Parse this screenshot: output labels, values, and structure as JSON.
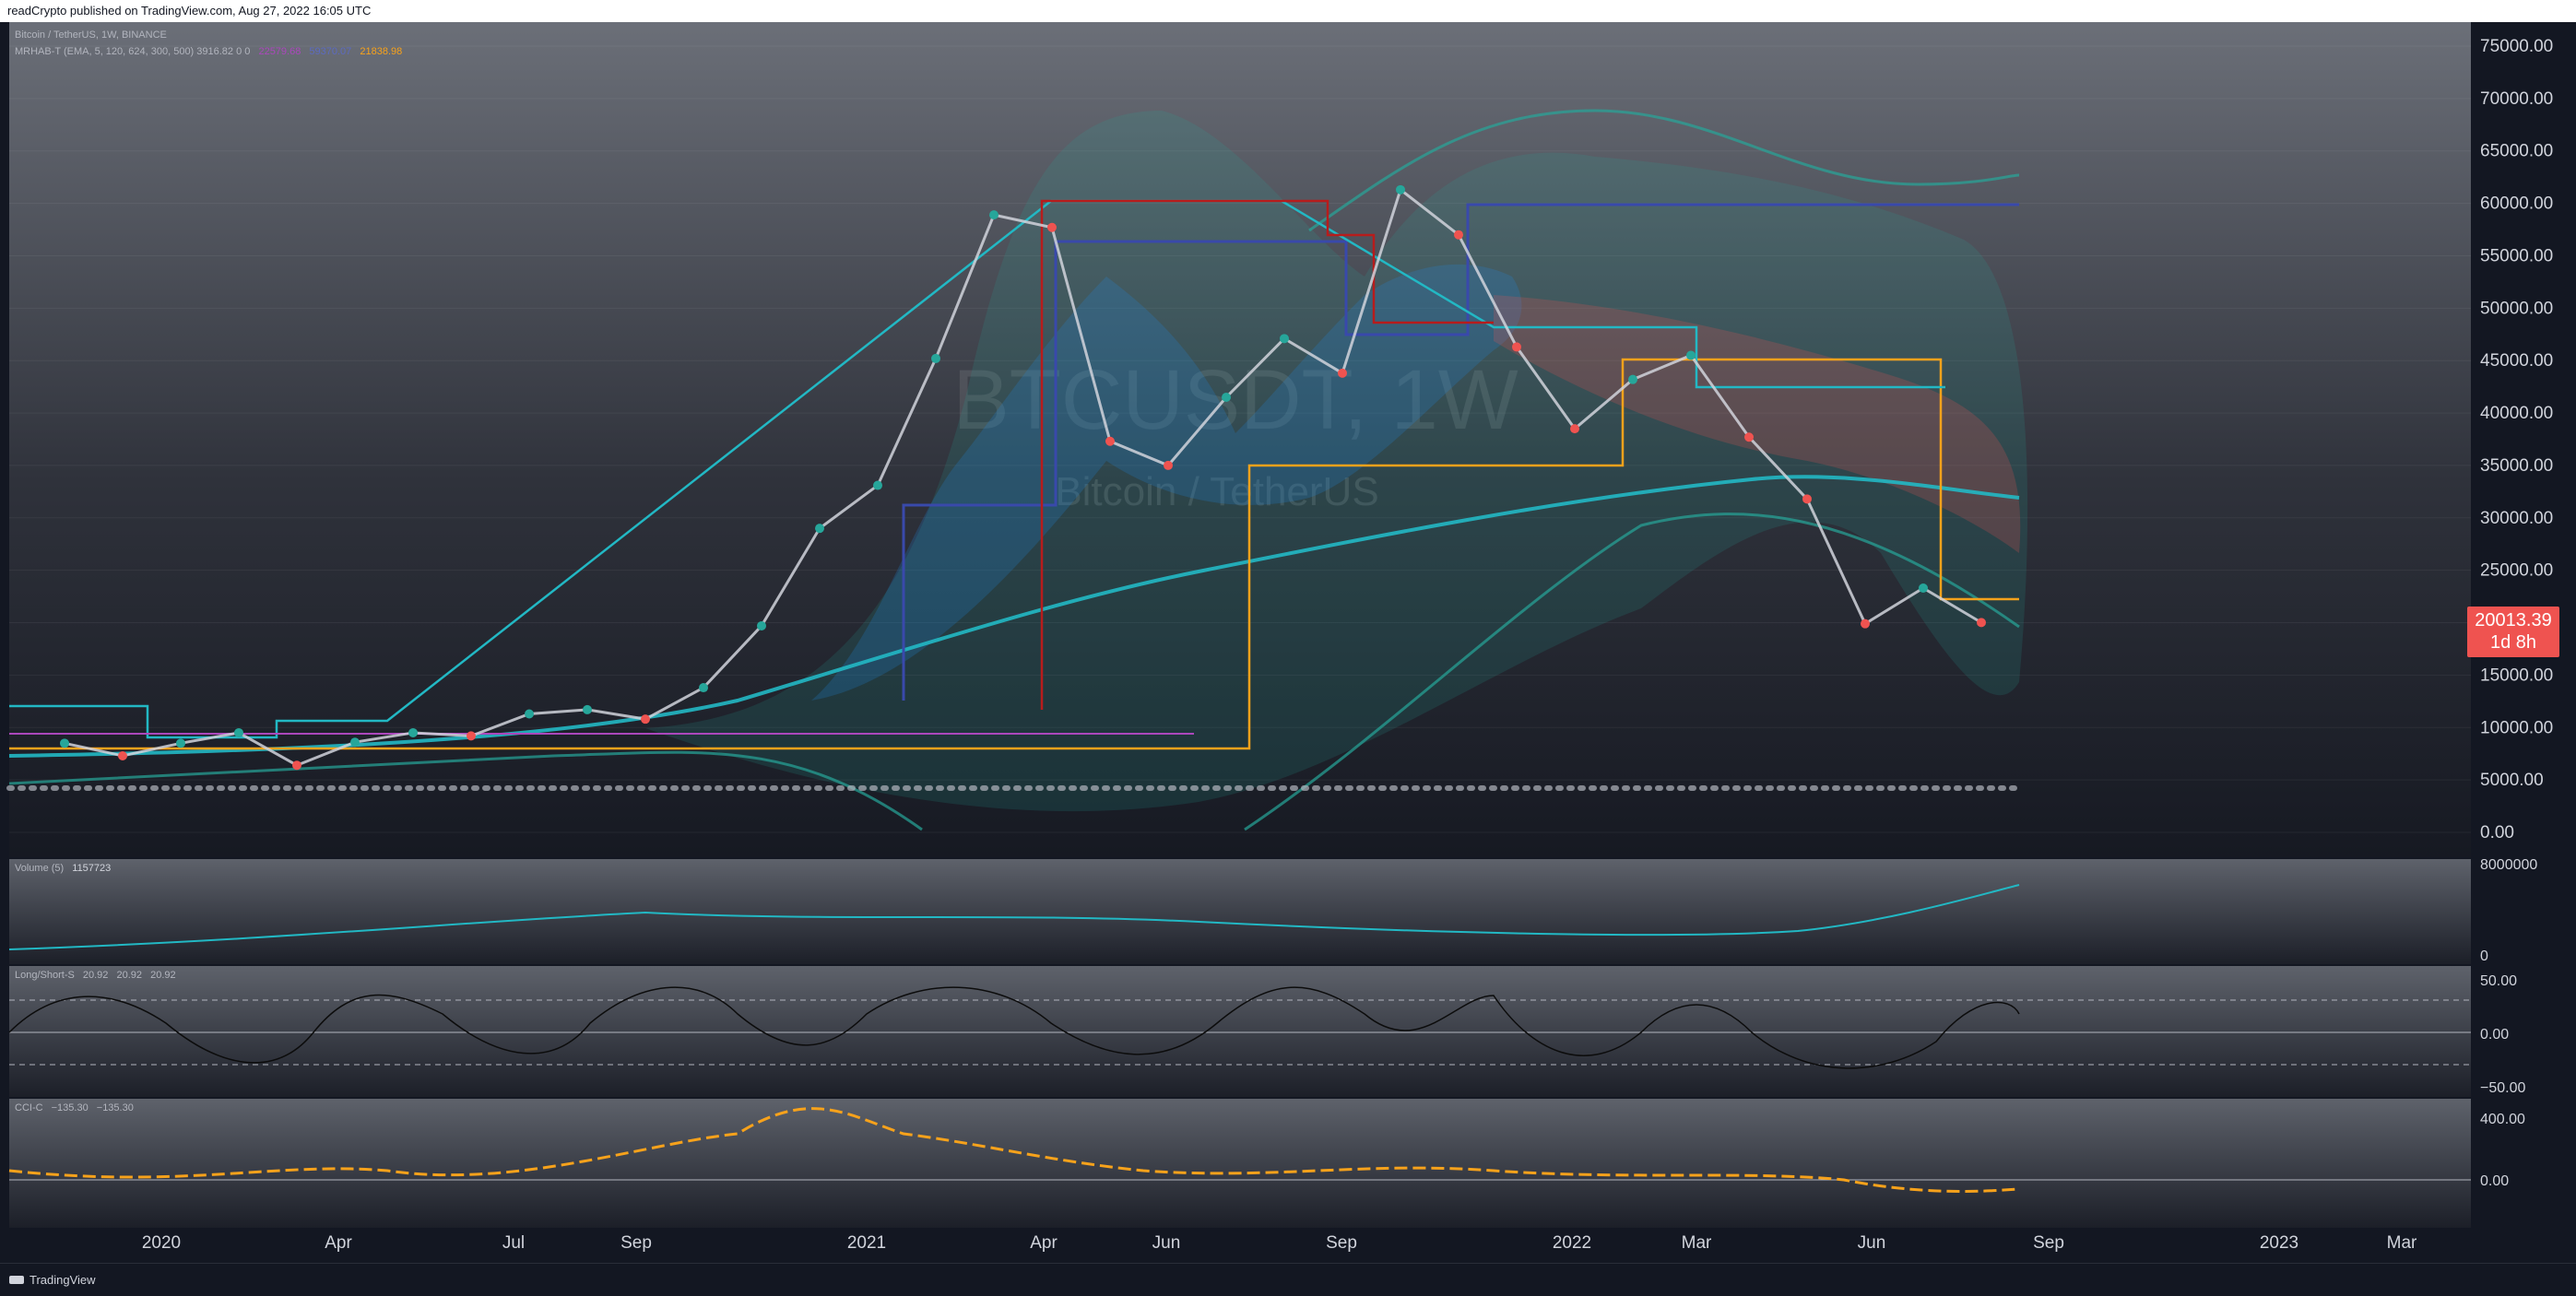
{
  "header": {
    "publisher": "readCrypto published on TradingView.com, Aug 27, 2022 16:05 UTC"
  },
  "footer": {
    "brand": "TradingView"
  },
  "colors": {
    "up": "#26a69a",
    "down": "#ef5350",
    "bg": "#131722",
    "grid": "#2a2e39",
    "ema_slow": "#22b8c4",
    "price_badge": "#ef5350"
  },
  "main": {
    "symbol_line": "Bitcoin / TetherUS, 1W, BINANCE",
    "indicator_line": "MRHAB-T (EMA, 5, 120, 624, 300, 500)  3916.82  0  0",
    "indicator_values": [
      "22579.68",
      "59370.07",
      "21838.98"
    ],
    "watermark_symbol": "BTCUSDT, 1W",
    "watermark_name": "Bitcoin / TetherUS",
    "price_badge": {
      "price": "20013.39",
      "countdown": "1d 8h"
    },
    "y_ticks": [
      "75000.00",
      "70000.00",
      "65000.00",
      "60000.00",
      "55000.00",
      "50000.00",
      "45000.00",
      "40000.00",
      "35000.00",
      "30000.00",
      "25000.00",
      "20000.00",
      "15000.00",
      "10000.00",
      "5000.00",
      "0.00"
    ]
  },
  "volume": {
    "label": "Volume (5)",
    "value": "1157723",
    "y_ticks": [
      "8000000",
      "0"
    ]
  },
  "longshort": {
    "label": "Long/Short-S",
    "values": [
      "20.92",
      "20.92",
      "20.92"
    ],
    "y_ticks": [
      "50.00",
      "0.00",
      "−50.00"
    ]
  },
  "cci": {
    "label": "CCI-C",
    "values": [
      "−135.30",
      "−135.30"
    ],
    "y_ticks": [
      "400.00",
      "0.00"
    ]
  },
  "x_axis": {
    "labels": [
      "2020",
      "Apr",
      "Jul",
      "Sep",
      "2021",
      "Apr",
      "Jun",
      "Sep",
      "2022",
      "Mar",
      "Jun",
      "Sep",
      "2023",
      "Mar"
    ]
  },
  "chart_data": {
    "type": "line",
    "title": "Bitcoin / TetherUS, 1W, BINANCE",
    "xlabel": "",
    "ylabel": "",
    "ylim": [
      0,
      75000
    ],
    "x": [
      "2019-11",
      "2019-12",
      "2020-01",
      "2020-02",
      "2020-03",
      "2020-04",
      "2020-05",
      "2020-06",
      "2020-07",
      "2020-08",
      "2020-09",
      "2020-10",
      "2020-11",
      "2020-12",
      "2021-01",
      "2021-02",
      "2021-03",
      "2021-04",
      "2021-05",
      "2021-06",
      "2021-07",
      "2021-08",
      "2021-09",
      "2021-10",
      "2021-11",
      "2021-12",
      "2022-01",
      "2022-02",
      "2022-03",
      "2022-04",
      "2022-05",
      "2022-06",
      "2022-07",
      "2022-08"
    ],
    "series": [
      {
        "name": "",
        "values": [
          8500,
          7300,
          8500,
          9500,
          6400,
          8600,
          9500,
          9200,
          11300,
          11700,
          10800,
          13800,
          19700,
          29000,
          33100,
          45200,
          58900,
          57700,
          37300,
          35000,
          41500,
          47100,
          43800,
          61300,
          57000,
          46300,
          38500,
          43200,
          45500,
          37700,
          31800,
          19900,
          23300,
          20013
        ]
      }
    ],
    "grid": true,
    "legend": "none"
  }
}
